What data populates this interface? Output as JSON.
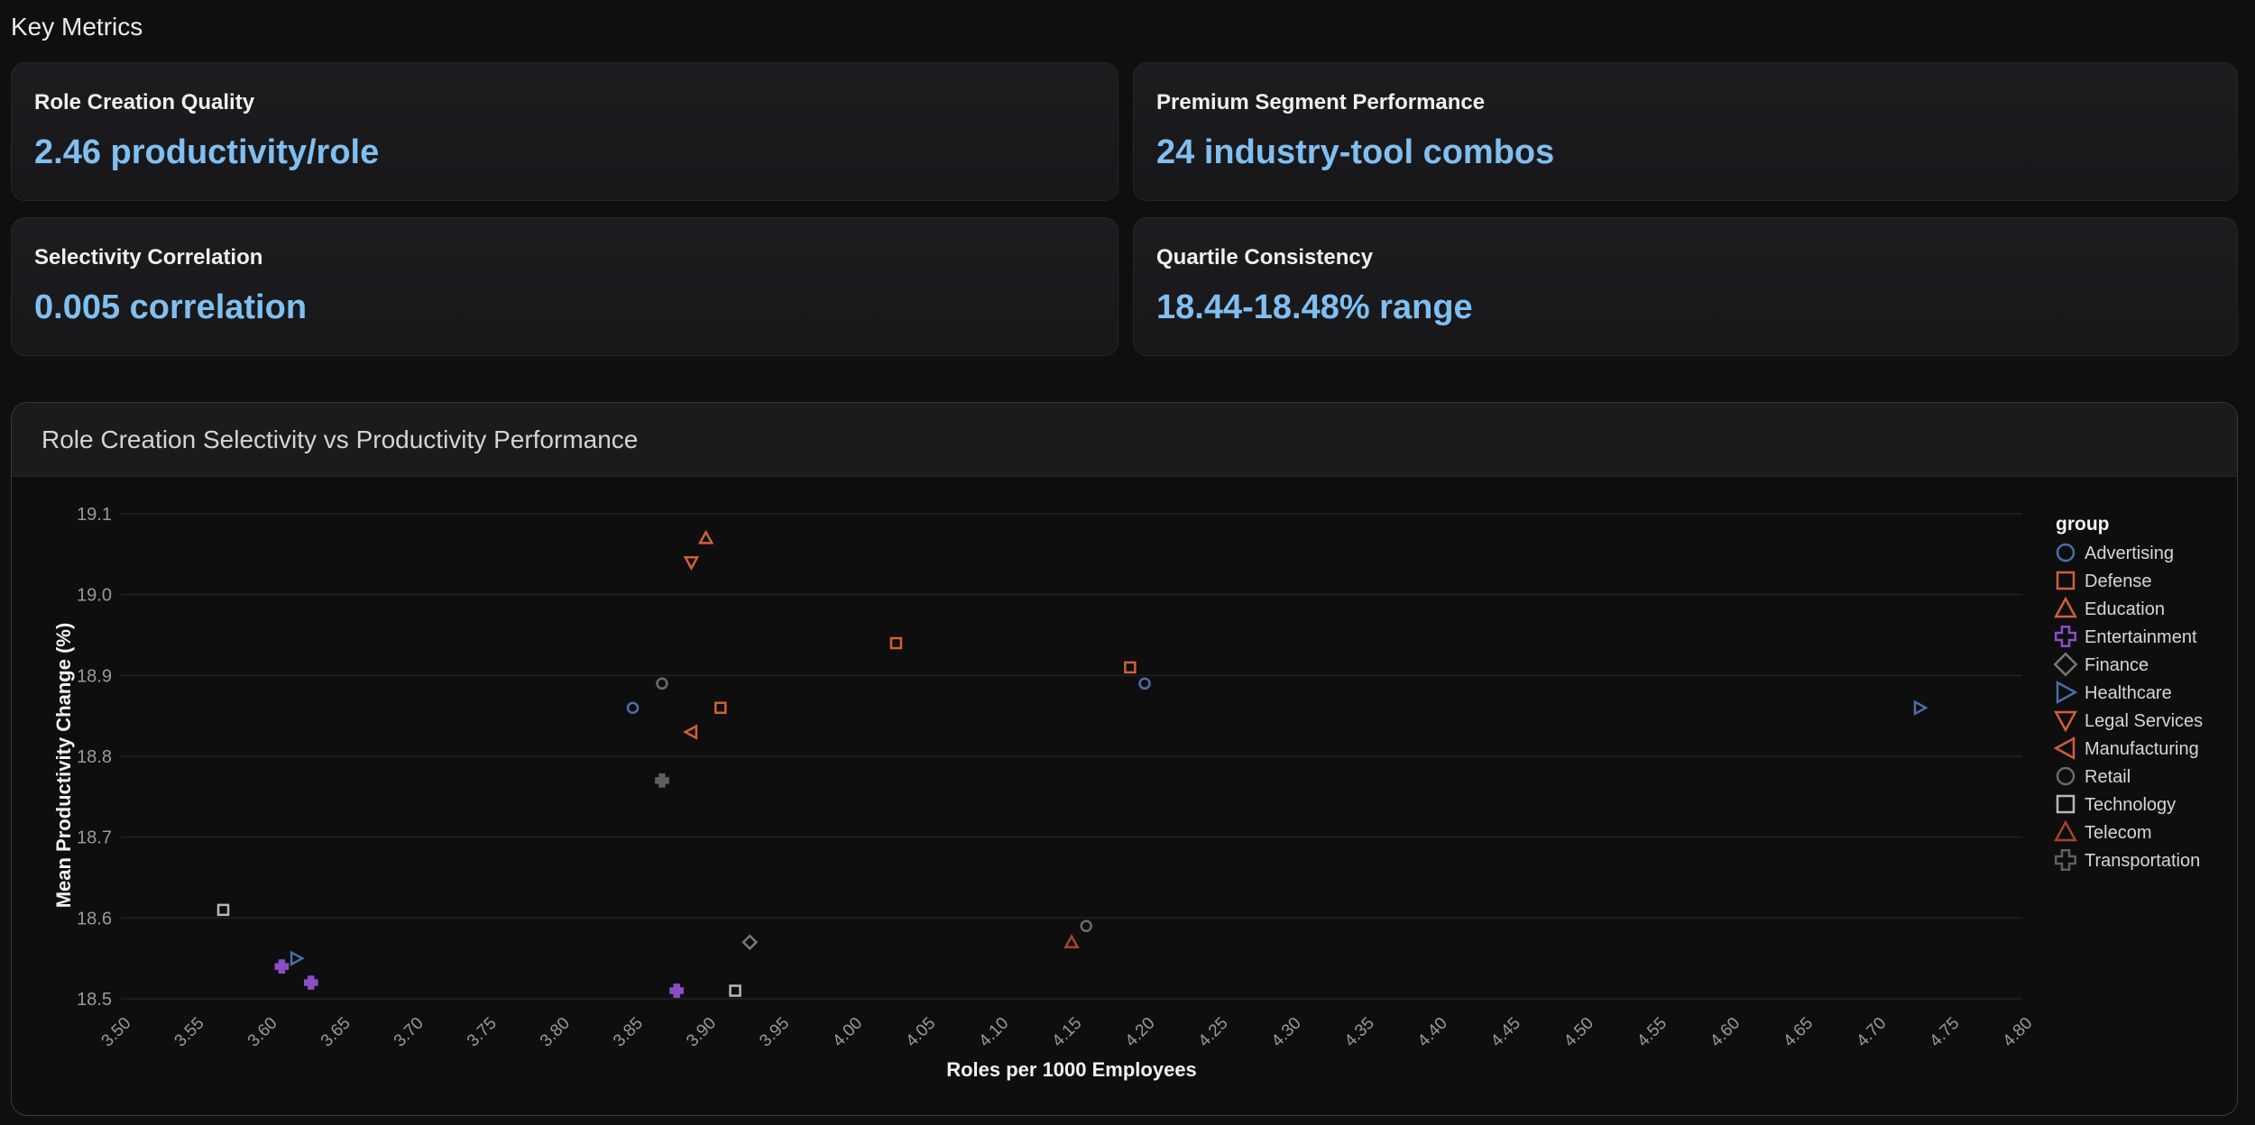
{
  "page": {
    "section_title": "Key Metrics"
  },
  "metrics": [
    {
      "label": "Role Creation Quality",
      "value": "2.46 productivity/role"
    },
    {
      "label": "Premium Segment Performance",
      "value": "24 industry-tool combos"
    },
    {
      "label": "Selectivity Correlation",
      "value": "0.005 correlation"
    },
    {
      "label": "Quartile Consistency",
      "value": "18.44-18.48% range"
    }
  ],
  "chart_panel": {
    "title": "Role Creation Selectivity vs Productivity Performance"
  },
  "chart_data": {
    "type": "scatter",
    "title": "",
    "xlabel": "Roles per 1000 Employees",
    "ylabel": "Mean Productivity Change (%)",
    "xlim": [
      3.5,
      4.8
    ],
    "ylim": [
      18.5,
      19.1
    ],
    "xticks": [
      "3.50",
      "3.55",
      "3.60",
      "3.65",
      "3.70",
      "3.75",
      "3.80",
      "3.85",
      "3.90",
      "3.95",
      "4.00",
      "4.05",
      "4.10",
      "4.15",
      "4.20",
      "4.25",
      "4.30",
      "4.35",
      "4.40",
      "4.45",
      "4.50",
      "4.55",
      "4.60",
      "4.65",
      "4.70",
      "4.75",
      "4.80"
    ],
    "yticks": [
      "18.5",
      "18.6",
      "18.7",
      "18.8",
      "18.9",
      "19.0",
      "19.1"
    ],
    "grid": true,
    "legend_title": "group",
    "legend_position": "right",
    "series": [
      {
        "name": "Advertising",
        "marker": "circle",
        "color": "#4a6fa5",
        "points": [
          [
            3.85,
            18.86
          ],
          [
            4.2,
            18.89
          ]
        ]
      },
      {
        "name": "Defense",
        "marker": "square",
        "color": "#d0603a",
        "points": [
          [
            4.03,
            18.94
          ],
          [
            4.19,
            18.91
          ],
          [
            3.91,
            18.86
          ]
        ]
      },
      {
        "name": "Education",
        "marker": "triangle-up",
        "color": "#d0603a",
        "points": [
          [
            3.9,
            19.07
          ]
        ]
      },
      {
        "name": "Entertainment",
        "marker": "plus",
        "color": "#8a4fc4",
        "points": [
          [
            3.61,
            18.54
          ],
          [
            3.63,
            18.52
          ],
          [
            3.88,
            18.51
          ]
        ]
      },
      {
        "name": "Finance",
        "marker": "diamond",
        "color": "#777777",
        "points": [
          [
            3.93,
            18.57
          ]
        ]
      },
      {
        "name": "Healthcare",
        "marker": "triangle-right",
        "color": "#4a6fa5",
        "points": [
          [
            4.73,
            18.86
          ],
          [
            3.62,
            18.55
          ]
        ]
      },
      {
        "name": "Legal Services",
        "marker": "triangle-down",
        "color": "#d0603a",
        "points": [
          [
            3.89,
            19.04
          ]
        ]
      },
      {
        "name": "Manufacturing",
        "marker": "triangle-left",
        "color": "#d0603a",
        "points": [
          [
            3.89,
            18.83
          ]
        ]
      },
      {
        "name": "Retail",
        "marker": "circle",
        "color": "#6a6a6a",
        "points": [
          [
            3.87,
            18.89
          ],
          [
            4.16,
            18.59
          ]
        ]
      },
      {
        "name": "Technology",
        "marker": "square",
        "color": "#b8b8b8",
        "points": [
          [
            3.57,
            18.61
          ],
          [
            3.92,
            18.51
          ]
        ]
      },
      {
        "name": "Telecom",
        "marker": "triangle-up",
        "color": "#a5452a",
        "points": [
          [
            4.15,
            18.57
          ]
        ]
      },
      {
        "name": "Transportation",
        "marker": "plus",
        "color": "#5f5f5f",
        "points": [
          [
            3.87,
            18.77
          ]
        ]
      }
    ]
  }
}
